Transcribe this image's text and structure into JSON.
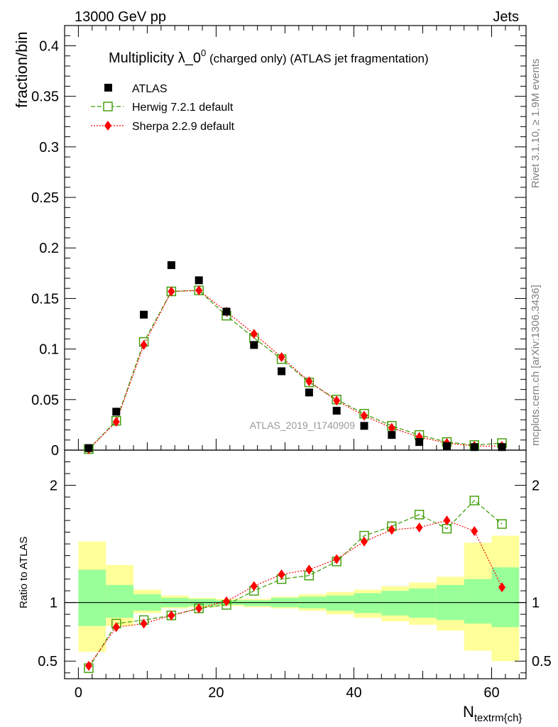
{
  "header": {
    "left": "13000 GeV pp",
    "right": "Jets"
  },
  "plot": {
    "title_main": "Multiplicity λ_0",
    "title_sup": "0",
    "title_sub": " (charged only) (ATLAS jet fragmentation)",
    "watermark": "ATLAS_2019_I1740909",
    "side_text_1": "Rivet 3.1.10, ≥ 1.9M events",
    "side_text_2": "mcplots.cern.ch [arXiv:1306.3436]"
  },
  "legend": [
    {
      "label": "ATLAS",
      "marker": "square-filled",
      "color": "#000000"
    },
    {
      "label": "Herwig 7.2.1 default",
      "marker": "square-open",
      "color": "#3a9a00"
    },
    {
      "label": "Sherpa 2.2.9 default",
      "marker": "diamond",
      "color": "#ff0000"
    }
  ],
  "chart_data": [
    {
      "type": "scatter",
      "ylabel": "fraction/bin",
      "xlim": [
        -2,
        65
      ],
      "ylim": [
        0,
        0.42
      ],
      "y_ticks": [
        "0",
        "0.05",
        "0.1",
        "0.15",
        "0.2",
        "0.25",
        "0.3",
        "0.35",
        "0.4"
      ],
      "x": [
        1.5,
        5.5,
        9.5,
        13.5,
        17.5,
        21.5,
        25.5,
        29.5,
        33.5,
        37.5,
        41.5,
        45.5,
        49.5,
        53.5,
        57.5,
        61.5
      ],
      "series": [
        {
          "name": "ATLAS",
          "values": [
            0.002,
            0.038,
            0.134,
            0.183,
            0.168,
            0.137,
            0.104,
            0.078,
            0.057,
            0.039,
            0.024,
            0.015,
            0.008,
            0.004,
            0.003,
            0.003
          ]
        },
        {
          "name": "Herwig 7.2.1 default",
          "values": [
            0.001,
            0.029,
            0.107,
            0.157,
            0.158,
            0.133,
            0.111,
            0.09,
            0.067,
            0.05,
            0.036,
            0.024,
            0.015,
            0.008,
            0.005,
            0.007
          ]
        },
        {
          "name": "Sherpa 2.2.9 default",
          "values": [
            0.001,
            0.028,
            0.104,
            0.157,
            0.158,
            0.137,
            0.115,
            0.092,
            0.068,
            0.049,
            0.034,
            0.022,
            0.013,
            0.007,
            0.004,
            0.004
          ]
        }
      ]
    },
    {
      "type": "line",
      "ylabel": "Ratio to ATLAS",
      "xlabel": "N_{textrm{ch}}",
      "xlim": [
        -2,
        65
      ],
      "ylim": [
        0.35,
        2.3
      ],
      "x_ticks": [
        "0",
        "20",
        "40",
        "60"
      ],
      "y_ticks": [
        "0.5",
        "1",
        "2"
      ],
      "x": [
        1.5,
        5.5,
        9.5,
        13.5,
        17.5,
        21.5,
        25.5,
        29.5,
        33.5,
        37.5,
        41.5,
        45.5,
        49.5,
        53.5,
        57.5,
        61.5
      ],
      "series": [
        {
          "name": "Herwig 7.2.1 default",
          "values": [
            0.44,
            0.82,
            0.85,
            0.89,
            0.95,
            0.98,
            1.1,
            1.2,
            1.23,
            1.35,
            1.57,
            1.65,
            1.75,
            1.63,
            1.87,
            1.67
          ]
        },
        {
          "name": "Sherpa 2.2.9 default",
          "values": [
            0.46,
            0.79,
            0.82,
            0.89,
            0.95,
            1.01,
            1.14,
            1.24,
            1.28,
            1.37,
            1.52,
            1.62,
            1.64,
            1.7,
            1.61,
            1.13
          ]
        }
      ],
      "band_edges": [
        0,
        4,
        8,
        12,
        16,
        20,
        24,
        28,
        32,
        36,
        40,
        44,
        48,
        52,
        56,
        60,
        64
      ],
      "band_inner": [
        [
          0.8,
          1.28
        ],
        [
          0.87,
          1.15
        ],
        [
          0.93,
          1.07
        ],
        [
          0.96,
          1.04
        ],
        [
          0.97,
          1.03
        ],
        [
          0.98,
          1.02
        ],
        [
          0.97,
          1.02
        ],
        [
          0.96,
          1.04
        ],
        [
          0.95,
          1.05
        ],
        [
          0.93,
          1.06
        ],
        [
          0.91,
          1.08
        ],
        [
          0.89,
          1.1
        ],
        [
          0.87,
          1.12
        ],
        [
          0.85,
          1.15
        ],
        [
          0.82,
          1.2
        ],
        [
          0.79,
          1.3
        ]
      ],
      "band_outer": [
        [
          0.58,
          1.52
        ],
        [
          0.8,
          1.32
        ],
        [
          0.91,
          1.11
        ],
        [
          0.95,
          1.06
        ],
        [
          0.96,
          1.04
        ],
        [
          0.97,
          1.03
        ],
        [
          0.96,
          1.03
        ],
        [
          0.95,
          1.05
        ],
        [
          0.93,
          1.07
        ],
        [
          0.9,
          1.09
        ],
        [
          0.87,
          1.11
        ],
        [
          0.84,
          1.14
        ],
        [
          0.81,
          1.17
        ],
        [
          0.76,
          1.22
        ],
        [
          0.59,
          1.51
        ],
        [
          0.5,
          1.57
        ]
      ]
    }
  ]
}
